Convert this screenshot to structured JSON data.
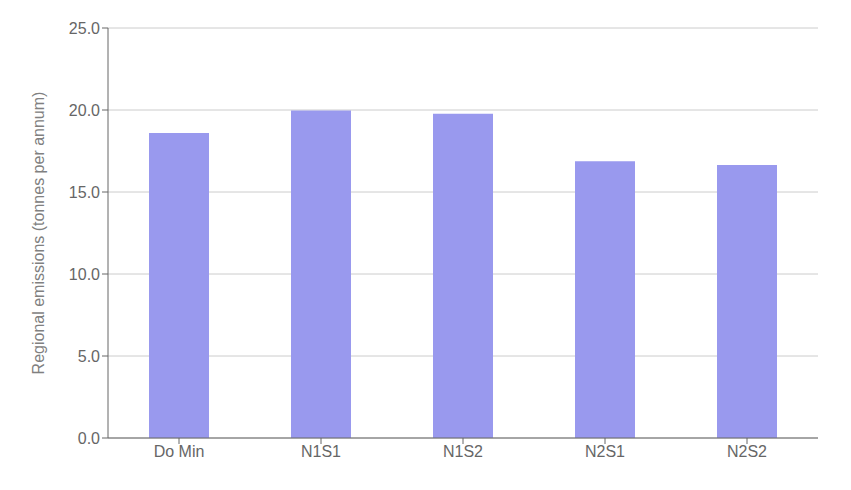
{
  "chart_data": {
    "type": "bar",
    "categories": [
      "Do Min",
      "N1S1",
      "N1S2",
      "N2S1",
      "N2S2"
    ],
    "values": [
      18.6,
      19.97,
      19.77,
      16.87,
      16.65
    ],
    "color": "#9999EE",
    "ylim": [
      0,
      25
    ],
    "yticks": [
      {
        "value": 0,
        "label": "0.0"
      },
      {
        "value": 5,
        "label": "5.0"
      },
      {
        "value": 10,
        "label": "10.0"
      },
      {
        "value": 15,
        "label": "15.0"
      },
      {
        "value": 20,
        "label": "20.0"
      },
      {
        "value": 25,
        "label": "25.0"
      }
    ],
    "ylabel": "Regional emissions (tonnes per annum)",
    "grid": true
  }
}
